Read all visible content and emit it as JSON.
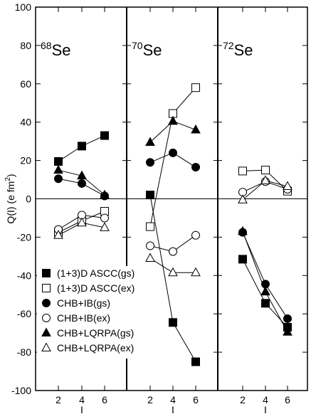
{
  "chart_data": {
    "type": "scatter",
    "ylabel_parts": {
      "main": "Q(I) (e fm",
      "sup": "2",
      "close": ")"
    },
    "xlabel": "I",
    "ylim": [
      -100,
      100
    ],
    "yticks": [
      -100,
      -80,
      -60,
      -40,
      -20,
      0,
      20,
      40,
      60,
      80,
      100
    ],
    "xticks": [
      2,
      4,
      6
    ],
    "legend_placement": "lower-left",
    "panels": [
      {
        "label_mass": "68",
        "label_elem": "Se",
        "series": [
          {
            "name": "(1+3)D ASCC(gs)",
            "marker": "square-filled",
            "x": [
              2,
              4,
              6
            ],
            "y": [
              19.5,
              27.5,
              33
            ]
          },
          {
            "name": "(1+3)D ASCC(ex)",
            "marker": "square-open",
            "x": [
              2,
              4,
              6
            ],
            "y": [
              -17.5,
              -11.5,
              -6.5
            ]
          },
          {
            "name": "CHB+IB(gs)",
            "marker": "circle-filled",
            "x": [
              2,
              4,
              6
            ],
            "y": [
              10.5,
              8,
              1.5
            ]
          },
          {
            "name": "CHB+IB(ex)",
            "marker": "circle-open",
            "x": [
              2,
              4,
              6
            ],
            "y": [
              -16,
              -8.5,
              -10
            ]
          },
          {
            "name": "CHB+LQRPA(gs)",
            "marker": "triangle-filled",
            "x": [
              2,
              4,
              6
            ],
            "y": [
              15,
              12,
              2
            ]
          },
          {
            "name": "CHB+LQRPA(ex)",
            "marker": "triangle-open",
            "x": [
              2,
              4,
              6
            ],
            "y": [
              -19,
              -12.5,
              -15
            ]
          }
        ]
      },
      {
        "label_mass": "70",
        "label_elem": "Se",
        "series": [
          {
            "name": "(1+3)D ASCC(gs)",
            "marker": "square-filled",
            "x": [
              2,
              4,
              6
            ],
            "y": [
              2,
              -64.5,
              -85
            ]
          },
          {
            "name": "(1+3)D ASCC(ex)",
            "marker": "square-open",
            "x": [
              2,
              4,
              6
            ],
            "y": [
              -14.5,
              44.5,
              58
            ]
          },
          {
            "name": "CHB+IB(gs)",
            "marker": "circle-filled",
            "x": [
              2,
              4,
              6
            ],
            "y": [
              19,
              24,
              16.5
            ]
          },
          {
            "name": "CHB+IB(ex)",
            "marker": "circle-open",
            "x": [
              2,
              4,
              6
            ],
            "y": [
              -24.5,
              -27.5,
              -19
            ]
          },
          {
            "name": "CHB+LQRPA(gs)",
            "marker": "triangle-filled",
            "x": [
              2,
              4,
              6
            ],
            "y": [
              29.5,
              40.5,
              36
            ]
          },
          {
            "name": "CHB+LQRPA(ex)",
            "marker": "triangle-open",
            "x": [
              2,
              4,
              6
            ],
            "y": [
              -31,
              -38.5,
              -38.5
            ]
          }
        ]
      },
      {
        "label_mass": "72",
        "label_elem": "Se",
        "series": [
          {
            "name": "(1+3)D ASCC(gs)",
            "marker": "square-filled",
            "x": [
              2,
              4,
              6
            ],
            "y": [
              -31.5,
              -54.5,
              -67
            ]
          },
          {
            "name": "(1+3)D ASCC(ex)",
            "marker": "square-open",
            "x": [
              2,
              4,
              6
            ],
            "y": [
              14.5,
              15,
              4
            ]
          },
          {
            "name": "CHB+IB(gs)",
            "marker": "circle-filled",
            "x": [
              2,
              4,
              6
            ],
            "y": [
              -17.5,
              -44.5,
              -62.5
            ]
          },
          {
            "name": "CHB+IB(ex)",
            "marker": "circle-open",
            "x": [
              2,
              4,
              6
            ],
            "y": [
              3.5,
              9,
              5
            ]
          },
          {
            "name": "CHB+LQRPA(gs)",
            "marker": "triangle-filled",
            "x": [
              2,
              4,
              6
            ],
            "y": [
              -17,
              -48.5,
              -69.5
            ]
          },
          {
            "name": "CHB+LQRPA(ex)",
            "marker": "triangle-open",
            "x": [
              2,
              4,
              6
            ],
            "y": [
              -0.5,
              9.5,
              6.5
            ]
          }
        ]
      }
    ],
    "legend": [
      {
        "label": "(1+3)D ASCC(gs)",
        "marker": "square-filled"
      },
      {
        "label": "(1+3)D ASCC(ex)",
        "marker": "square-open"
      },
      {
        "label": "CHB+IB(gs)",
        "marker": "circle-filled"
      },
      {
        "label": "CHB+IB(ex)",
        "marker": "circle-open"
      },
      {
        "label": "CHB+LQRPA(gs)",
        "marker": "triangle-filled"
      },
      {
        "label": "CHB+LQRPA(ex)",
        "marker": "triangle-open"
      }
    ]
  }
}
